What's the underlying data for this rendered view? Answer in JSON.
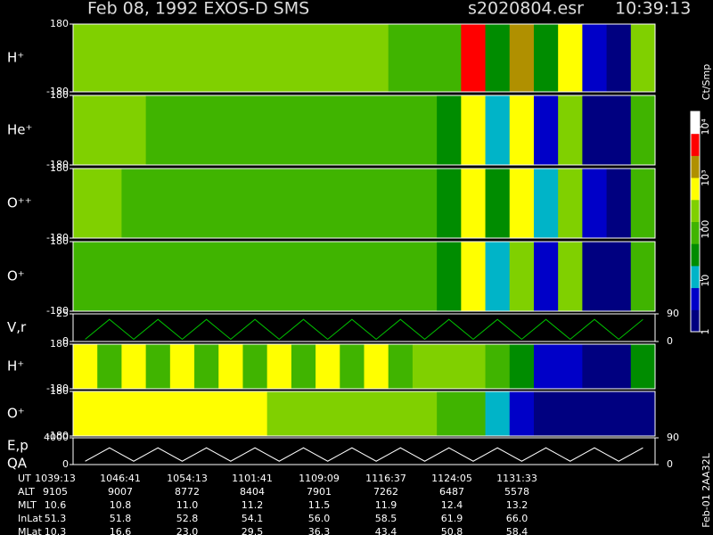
{
  "chart_data": {
    "type": "heatmap",
    "title": "Feb 08, 1992   EXOS-D SMS",
    "file": "s2020804.esr",
    "time": "10:39:13",
    "side_label": "Feb-01 2AA32L",
    "colorbar": {
      "label": "Ct/Smp",
      "log": true,
      "lim": [
        1,
        20000
      ],
      "ticks": [
        {
          "value": 10000,
          "label": "10⁴"
        },
        {
          "value": 1000,
          "label": "10³"
        },
        100,
        10,
        1
      ],
      "colors": [
        "#000080",
        "#0000c8",
        "#00b4c8",
        "#008c00",
        "#40b400",
        "#80d000",
        "#ffff00",
        "#b09000",
        "#ff0000",
        "#ffffff"
      ]
    },
    "panels": [
      {
        "type": "heatmap",
        "label": "H⁺",
        "ylim": [
          -180,
          180
        ],
        "yticks": [
          -180,
          180
        ],
        "levels": [
          300,
          300,
          300,
          250,
          250,
          250,
          200,
          200,
          200,
          200,
          150,
          150,
          150,
          120,
          120,
          80,
          3000,
          50,
          2000,
          20,
          1000,
          3,
          2,
          200
        ]
      },
      {
        "type": "heatmap",
        "label": "He⁺",
        "ylim": [
          -180,
          180
        ],
        "yticks": [
          -180,
          180
        ],
        "levels": [
          150,
          150,
          150,
          130,
          130,
          120,
          120,
          100,
          100,
          100,
          100,
          90,
          90,
          80,
          80,
          40,
          800,
          15,
          500,
          5,
          300,
          2,
          1,
          100
        ]
      },
      {
        "type": "heatmap",
        "label": "O⁺⁺",
        "ylim": [
          -180,
          180
        ],
        "yticks": [
          -180,
          180
        ],
        "levels": [
          150,
          150,
          140,
          140,
          130,
          120,
          110,
          100,
          100,
          100,
          90,
          90,
          80,
          80,
          70,
          40,
          500,
          20,
          400,
          10,
          200,
          3,
          2,
          100
        ]
      },
      {
        "type": "heatmap",
        "label": "O⁺",
        "ylim": [
          -180,
          180
        ],
        "yticks": [
          -180,
          180
        ],
        "levels": [
          120,
          120,
          120,
          110,
          110,
          100,
          100,
          90,
          90,
          90,
          80,
          80,
          70,
          70,
          60,
          30,
          400,
          15,
          300,
          6,
          150,
          2,
          1,
          80
        ]
      },
      {
        "type": "line",
        "label": "V,r",
        "ylim": [
          0,
          25
        ],
        "yticks": [
          0,
          25
        ],
        "y2lim": [
          0,
          90
        ],
        "y2ticks": [
          0,
          90
        ],
        "color": "#00c000",
        "values": [
          2,
          20,
          2,
          20,
          2,
          20,
          2,
          20,
          2,
          20,
          2,
          20,
          2,
          20,
          2,
          20,
          2,
          20,
          2,
          20,
          2,
          20,
          2,
          20
        ]
      },
      {
        "type": "heatmap",
        "label": "H⁺",
        "ylim": [
          -180,
          180
        ],
        "yticks": [
          -180,
          180
        ],
        "levels": [
          400,
          100,
          400,
          100,
          400,
          100,
          400,
          100,
          400,
          100,
          400,
          100,
          400,
          100,
          300,
          200,
          150,
          100,
          20,
          5,
          3,
          2,
          1,
          50
        ]
      },
      {
        "type": "heatmap",
        "label": "O⁺",
        "ylim": [
          -180,
          180
        ],
        "yticks": [
          -180,
          180
        ],
        "levels": [
          800,
          800,
          800,
          700,
          700,
          600,
          500,
          400,
          300,
          250,
          200,
          200,
          200,
          150,
          150,
          100,
          60,
          15,
          5,
          2,
          2,
          1,
          1,
          1
        ]
      },
      {
        "type": "line",
        "label": "E,p",
        "label2": "QA",
        "ylim": [
          0,
          4000
        ],
        "yticks": [
          0,
          4000
        ],
        "y2lim": [
          0,
          90
        ],
        "y2ticks": [
          0,
          90
        ],
        "color": "#ffffff",
        "values": [
          500,
          2500,
          500,
          2500,
          500,
          2500,
          500,
          2500,
          500,
          2500,
          500,
          2500,
          500,
          2500,
          500,
          2500,
          500,
          2500,
          500,
          2500,
          500,
          2500,
          500,
          2500
        ]
      }
    ]
  },
  "table": {
    "rows": [
      [
        "UT",
        "1039:13",
        "1046:41",
        "1054:13",
        "1101:41",
        "1109:09",
        "1116:37",
        "1124:05",
        "1131:33"
      ],
      [
        "ALT",
        "9105",
        "9007",
        "8772",
        "8404",
        "7901",
        "7262",
        "6487",
        "5578"
      ],
      [
        "MLT",
        "10.6",
        "10.8",
        "11.0",
        "11.2",
        "11.5",
        "11.9",
        "12.4",
        "13.2"
      ],
      [
        "InLat",
        "51.3",
        "51.8",
        "52.8",
        "54.1",
        "56.0",
        "58.5",
        "61.9",
        "66.0"
      ],
      [
        "MLat",
        "10.3",
        "16.6",
        "23.0",
        "29.5",
        "36.3",
        "43.4",
        "50.8",
        "58.4"
      ]
    ]
  }
}
